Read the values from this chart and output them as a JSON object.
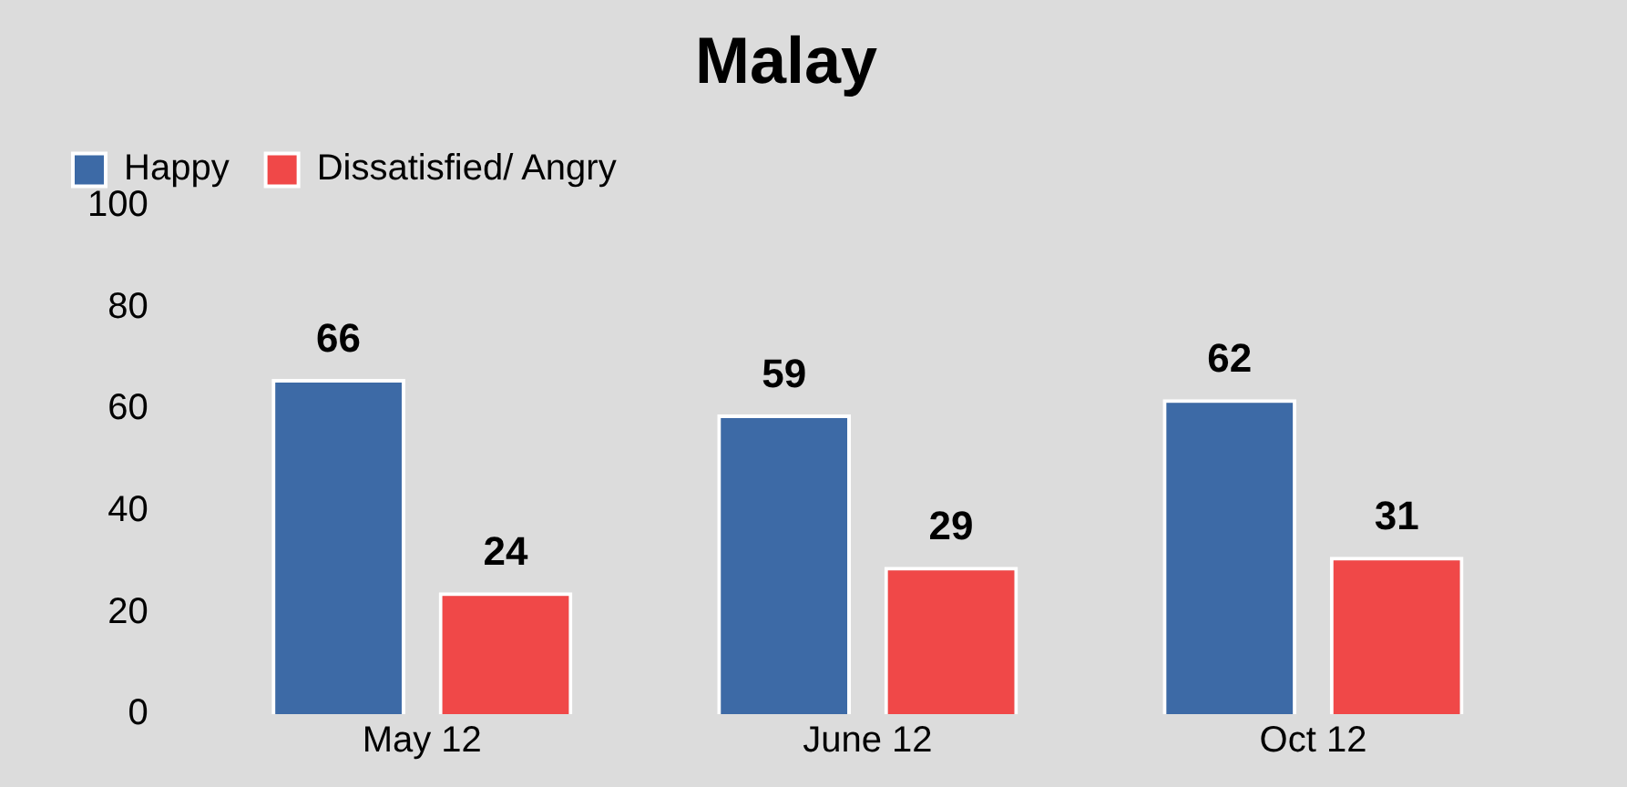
{
  "chart_data": {
    "type": "bar",
    "title": "Malay",
    "categories": [
      "May 12",
      "June 12",
      "Oct 12"
    ],
    "series": [
      {
        "name": "Happy",
        "color": "#3d6aa6",
        "values": [
          66,
          59,
          62
        ]
      },
      {
        "name": "Dissatisfied/ Angry",
        "color": "#f04848",
        "values": [
          24,
          29,
          31
        ]
      }
    ],
    "ylim": [
      0,
      100
    ],
    "yticks": [
      0,
      20,
      40,
      60,
      80,
      100
    ],
    "grid": false,
    "legend": "top left",
    "data_labels": true
  }
}
